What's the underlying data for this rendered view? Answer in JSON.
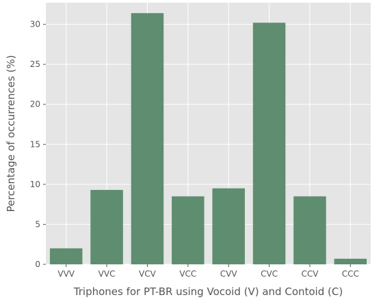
{
  "chart_data": {
    "type": "bar",
    "title": "",
    "xlabel": "Triphones for PT-BR using Vocoid (V) and Contoid (C)",
    "ylabel": "Percentage of occurrences (%)",
    "categories": [
      "VVV",
      "VVC",
      "VCV",
      "VCC",
      "CVV",
      "CVC",
      "CCV",
      "CCC"
    ],
    "values": [
      2.0,
      9.3,
      31.4,
      8.5,
      9.5,
      30.2,
      8.5,
      0.7
    ],
    "ylim": [
      0,
      32.7
    ],
    "yticks": [
      0,
      5,
      10,
      15,
      20,
      25,
      30
    ],
    "grid": true,
    "legend": "none",
    "colors": {
      "bar": "#5f8d6f",
      "plot_background": "#e5e5e5",
      "grid": "#ffffff",
      "text": "#555555"
    }
  }
}
